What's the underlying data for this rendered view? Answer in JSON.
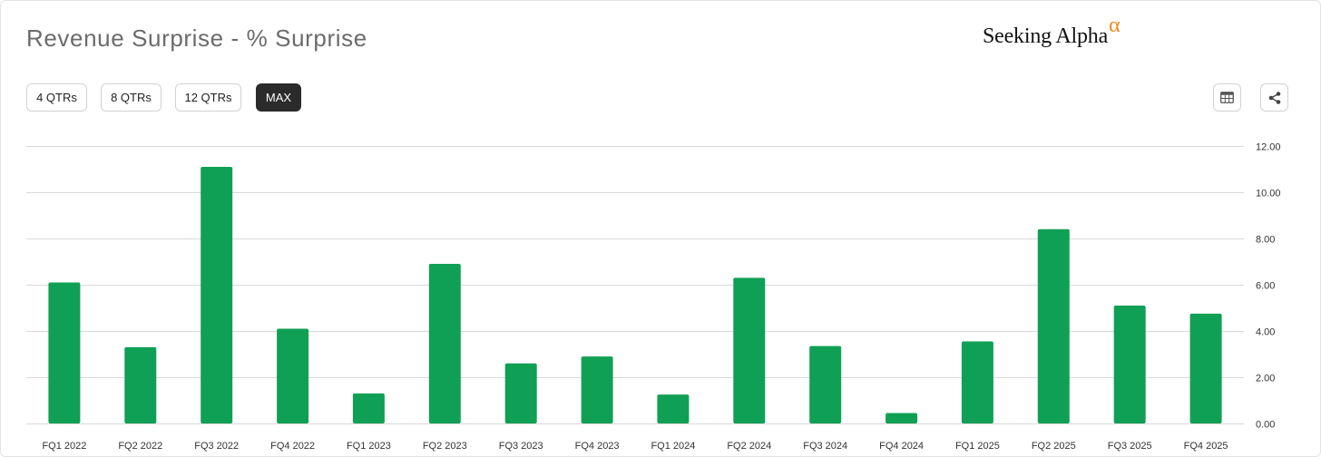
{
  "header": {
    "title": "Revenue Surprise - % Surprise",
    "brand": "Seeking Alpha",
    "brand_mark": "α"
  },
  "range_buttons": [
    {
      "label": "4 QTRs",
      "active": false
    },
    {
      "label": "8 QTRs",
      "active": false
    },
    {
      "label": "12 QTRs",
      "active": false
    },
    {
      "label": "MAX",
      "active": true
    }
  ],
  "toolbar": {
    "table_icon": "table-icon",
    "share_icon": "share-icon"
  },
  "colors": {
    "bar": "#10a055",
    "grid": "#d9d9d9",
    "active_button": "#2b2b2b",
    "brand_mark": "#f08a1c"
  },
  "chart_data": {
    "type": "bar",
    "title": "Revenue Surprise - % Surprise",
    "categories": [
      "FQ1 2022",
      "FQ2 2022",
      "FQ3 2022",
      "FQ4 2022",
      "FQ1 2023",
      "FQ2 2023",
      "FQ3 2023",
      "FQ4 2023",
      "FQ1 2024",
      "FQ2 2024",
      "FQ3 2024",
      "FQ4 2024",
      "FQ1 2025",
      "FQ2 2025",
      "FQ3 2025",
      "FQ4 2025"
    ],
    "values": [
      6.1,
      3.3,
      11.1,
      4.1,
      1.3,
      6.9,
      2.6,
      2.9,
      1.25,
      6.3,
      3.35,
      0.45,
      3.55,
      8.4,
      5.1,
      4.75
    ],
    "ylim": [
      0,
      12
    ],
    "yticks": [
      "0.00",
      "2.00",
      "4.00",
      "6.00",
      "8.00",
      "10.00",
      "12.00"
    ],
    "y_axis_side": "right",
    "grid": true,
    "xlabel": "",
    "ylabel": ""
  }
}
